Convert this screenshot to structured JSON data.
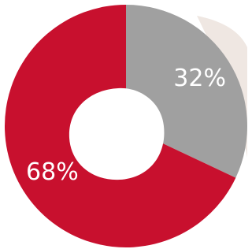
{
  "chart_data": {
    "type": "donut",
    "values": [
      32,
      68
    ],
    "value_labels": [
      "32%",
      "68%"
    ],
    "colors": [
      "#a0a0a0",
      "#c8102e"
    ]
  }
}
